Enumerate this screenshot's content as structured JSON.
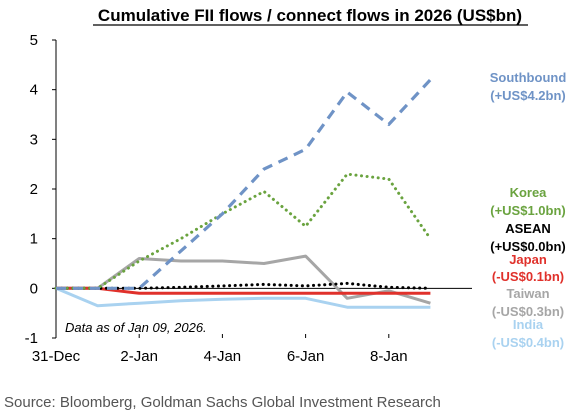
{
  "chart_data": {
    "type": "line",
    "title": "Cumulative FII flows / connect flows in 2026 (US$bn)",
    "xlabel": "",
    "ylabel": "",
    "ylim": [
      -1,
      5
    ],
    "y_ticks": [
      "5",
      "4",
      "3",
      "2",
      "1",
      "0",
      "-1"
    ],
    "y_tick_values": [
      5,
      4,
      3,
      2,
      1,
      0,
      -1
    ],
    "x_ticks": [
      "31-Dec",
      "2-Jan",
      "4-Jan",
      "6-Jan",
      "8-Jan"
    ],
    "x_tick_values": [
      0,
      2,
      4,
      6,
      8
    ],
    "xlim": [
      0,
      10
    ],
    "grid": false,
    "annotation": "Data as of Jan 09, 2026.",
    "source": "Source: Bloomberg, Goldman Sachs Global Investment Research",
    "series": [
      {
        "key": "southbound",
        "label_name": "Southbound",
        "label_value": "(+US$4.2bn)",
        "color": "#6f93c6",
        "style": "dash",
        "points": [
          [
            0,
            0
          ],
          [
            1,
            0
          ],
          [
            2,
            0
          ],
          [
            3,
            0.75
          ],
          [
            4,
            1.5
          ],
          [
            5,
            2.4
          ],
          [
            6,
            2.8
          ],
          [
            7,
            3.95
          ],
          [
            8,
            3.3
          ],
          [
            9,
            4.2
          ]
        ]
      },
      {
        "key": "korea",
        "label_name": "Korea",
        "label_value": "(+US$1.0bn)",
        "color": "#6aa33f",
        "style": "dot",
        "points": [
          [
            0,
            0
          ],
          [
            1,
            0
          ],
          [
            2,
            0.55
          ],
          [
            3,
            1.0
          ],
          [
            4,
            1.5
          ],
          [
            5,
            1.95
          ],
          [
            6,
            1.25
          ],
          [
            7,
            2.3
          ],
          [
            8,
            2.2
          ],
          [
            9,
            1.0
          ]
        ]
      },
      {
        "key": "asean",
        "label_name": "ASEAN",
        "label_value": "(+US$0.0bn)",
        "color": "#000000",
        "style": "dot",
        "points": [
          [
            0,
            0
          ],
          [
            1,
            0
          ],
          [
            2,
            0
          ],
          [
            3,
            0.02
          ],
          [
            4,
            0.05
          ],
          [
            5,
            0.08
          ],
          [
            6,
            0.05
          ],
          [
            7,
            0.1
          ],
          [
            8,
            0.02
          ],
          [
            9,
            0.0
          ]
        ]
      },
      {
        "key": "japan",
        "label_name": "Japan",
        "label_value": "(-US$0.1bn)",
        "color": "#e0312b",
        "style": "solid",
        "points": [
          [
            0,
            0
          ],
          [
            1,
            0
          ],
          [
            2,
            -0.1
          ],
          [
            3,
            -0.1
          ],
          [
            4,
            -0.1
          ],
          [
            5,
            -0.1
          ],
          [
            6,
            -0.1
          ],
          [
            7,
            -0.1
          ],
          [
            8,
            -0.1
          ],
          [
            9,
            -0.1
          ]
        ]
      },
      {
        "key": "taiwan",
        "label_name": "Taiwan",
        "label_value": "(-US$0.3bn)",
        "color": "#a6a6a6",
        "style": "solid",
        "points": [
          [
            0,
            0
          ],
          [
            1,
            0
          ],
          [
            2,
            0.6
          ],
          [
            3,
            0.55
          ],
          [
            4,
            0.55
          ],
          [
            5,
            0.5
          ],
          [
            6,
            0.65
          ],
          [
            7,
            -0.2
          ],
          [
            8,
            -0.05
          ],
          [
            9,
            -0.3
          ]
        ]
      },
      {
        "key": "india",
        "label_name": "India",
        "label_value": "(-US$0.4bn)",
        "color": "#a9d2f0",
        "style": "solid",
        "points": [
          [
            0,
            0
          ],
          [
            1,
            -0.35
          ],
          [
            2,
            -0.3
          ],
          [
            3,
            -0.25
          ],
          [
            4,
            -0.22
          ],
          [
            5,
            -0.2
          ],
          [
            6,
            -0.2
          ],
          [
            7,
            -0.38
          ],
          [
            8,
            -0.38
          ],
          [
            9,
            -0.38
          ]
        ]
      }
    ]
  }
}
